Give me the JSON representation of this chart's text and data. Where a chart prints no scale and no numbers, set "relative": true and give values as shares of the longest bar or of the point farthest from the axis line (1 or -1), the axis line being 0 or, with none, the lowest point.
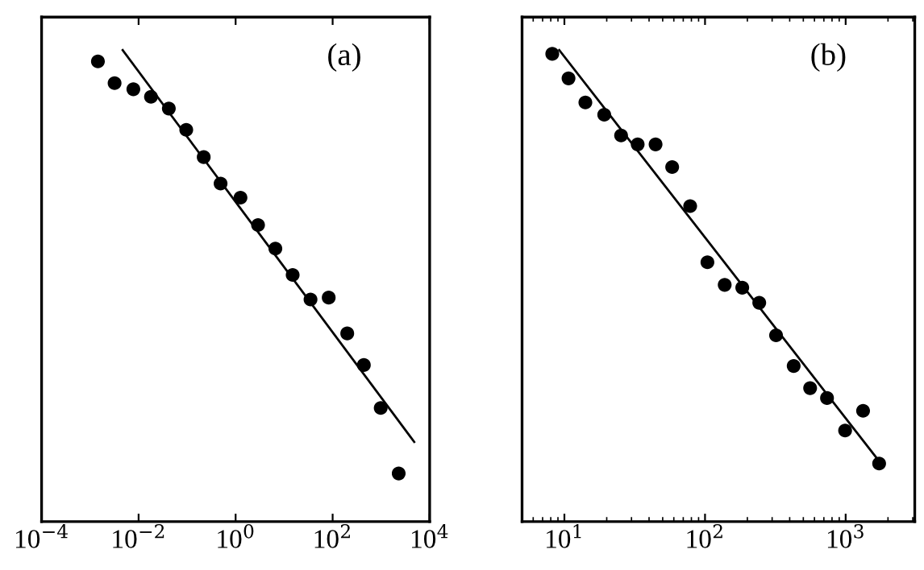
{
  "chart_data": [
    {
      "type": "scatter",
      "relative": true,
      "log": "x",
      "xlim": [
        0.0001,
        10000
      ],
      "xticks": [
        {
          "value": 0.0001,
          "label": "10$^{−4}$"
        },
        {
          "value": 0.01,
          "label": "10$^{−2}$"
        },
        {
          "value": 1,
          "label": "10$^{0}$"
        },
        {
          "value": 100,
          "label": "10$^{2}$"
        },
        {
          "value": 10000,
          "label": "10$^{4}$"
        }
      ],
      "annotations": [
        "(a)"
      ],
      "grid": false,
      "legend": false,
      "series": [
        {
          "marker": "circle",
          "color": "#000000",
          "x": [
            0.00145,
            0.0032,
            0.0078,
            0.018,
            0.042,
            0.096,
            0.22,
            0.49,
            1.26,
            2.9,
            6.6,
            15,
            35,
            83,
            200,
            440,
            980,
            2300
          ],
          "values": [
            0.976,
            0.93,
            0.917,
            0.901,
            0.876,
            0.831,
            0.773,
            0.717,
            0.687,
            0.629,
            0.579,
            0.523,
            0.471,
            0.475,
            0.399,
            0.332,
            0.241,
            0.102
          ]
        },
        {
          "type": "line",
          "color": "#000000",
          "line_style": "solid",
          "x": [
            0.0047,
            4800
          ],
          "values": [
            1,
            0.169
          ]
        }
      ]
    },
    {
      "type": "scatter",
      "relative": true,
      "log": "x",
      "xlim": [
        5,
        3100
      ],
      "xticks": [
        {
          "value": 10,
          "label": "10$^{1}$"
        },
        {
          "value": 100,
          "label": "10$^{2}$"
        },
        {
          "value": 1000,
          "label": "10$^{3}$"
        }
      ],
      "annotations": [
        "(b)"
      ],
      "grid": false,
      "legend": false,
      "series": [
        {
          "marker": "circle",
          "color": "#000000",
          "x": [
            8.2,
            10.7,
            14.1,
            19.2,
            25.3,
            33.2,
            44.5,
            58.4,
            78.4,
            104,
            138,
            184,
            243,
            320,
            427,
            559,
            737,
            991,
            1330,
            1730
          ],
          "values": [
            0.992,
            0.94,
            0.889,
            0.863,
            0.819,
            0.8,
            0.8,
            0.752,
            0.669,
            0.55,
            0.502,
            0.496,
            0.464,
            0.395,
            0.33,
            0.283,
            0.262,
            0.193,
            0.235,
            0.123
          ]
        },
        {
          "type": "line",
          "color": "#000000",
          "line_style": "solid",
          "x": [
            9.2,
            1760
          ],
          "values": [
            1,
            0.125
          ]
        }
      ]
    }
  ]
}
